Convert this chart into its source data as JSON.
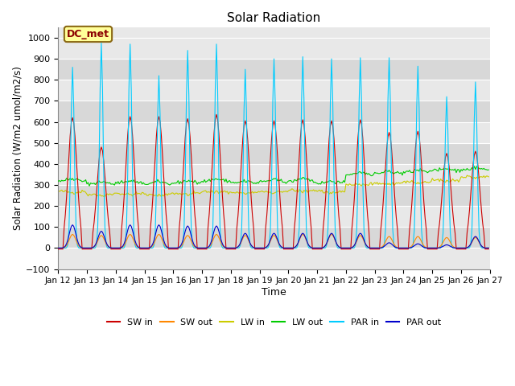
{
  "title": "Solar Radiation",
  "xlabel": "Time",
  "ylabel": "Solar Radiation (W/m2 umol/m2/s)",
  "ylim": [
    -100,
    1050
  ],
  "n_days": 15,
  "hours_per_day": 24,
  "annotation": "DC_met",
  "series": {
    "SW_in": {
      "color": "#cc0000",
      "label": "SW in"
    },
    "SW_out": {
      "color": "#ff8800",
      "label": "SW out"
    },
    "LW_in": {
      "color": "#cccc00",
      "label": "LW in"
    },
    "LW_out": {
      "color": "#00cc00",
      "label": "LW out"
    },
    "PAR_in": {
      "color": "#00ccff",
      "label": "PAR in"
    },
    "PAR_out": {
      "color": "#0000cc",
      "label": "PAR out"
    }
  },
  "tick_labels": [
    "Jan 12",
    "Jan 13",
    "Jan 14",
    "Jan 15",
    "Jan 16",
    "Jan 17",
    "Jan 18",
    "Jan 19",
    "Jan 20",
    "Jan 21",
    "Jan 22",
    "Jan 23",
    "Jan 24",
    "Jan 25",
    "Jan 26",
    "Jan 27"
  ],
  "yticks": [
    -100,
    0,
    100,
    200,
    300,
    400,
    500,
    600,
    700,
    800,
    900,
    1000
  ],
  "par_in_peaks": [
    860,
    975,
    970,
    820,
    940,
    970,
    850,
    900,
    910,
    900,
    905,
    905,
    865,
    720,
    790
  ],
  "sw_in_peaks": [
    620,
    480,
    625,
    625,
    615,
    635,
    605,
    605,
    610,
    605,
    610,
    550,
    555,
    450,
    460
  ],
  "sw_out_peaks": [
    65,
    60,
    65,
    65,
    60,
    65,
    60,
    60,
    65,
    65,
    60,
    55,
    55,
    50,
    50
  ],
  "par_out_peaks": [
    110,
    80,
    110,
    110,
    105,
    105,
    70,
    70,
    70,
    70,
    70,
    25,
    20,
    15,
    55
  ],
  "lw_in_base": [
    270,
    255,
    260,
    255,
    260,
    270,
    265,
    270,
    275,
    270,
    305,
    310,
    315,
    325,
    340
  ],
  "lw_out_base": [
    320,
    305,
    310,
    305,
    310,
    318,
    308,
    315,
    318,
    308,
    350,
    355,
    360,
    368,
    372
  ],
  "bg_color": "#d8d8d8",
  "band_colors": [
    "#e8e8e8",
    "#d8d8d8"
  ]
}
